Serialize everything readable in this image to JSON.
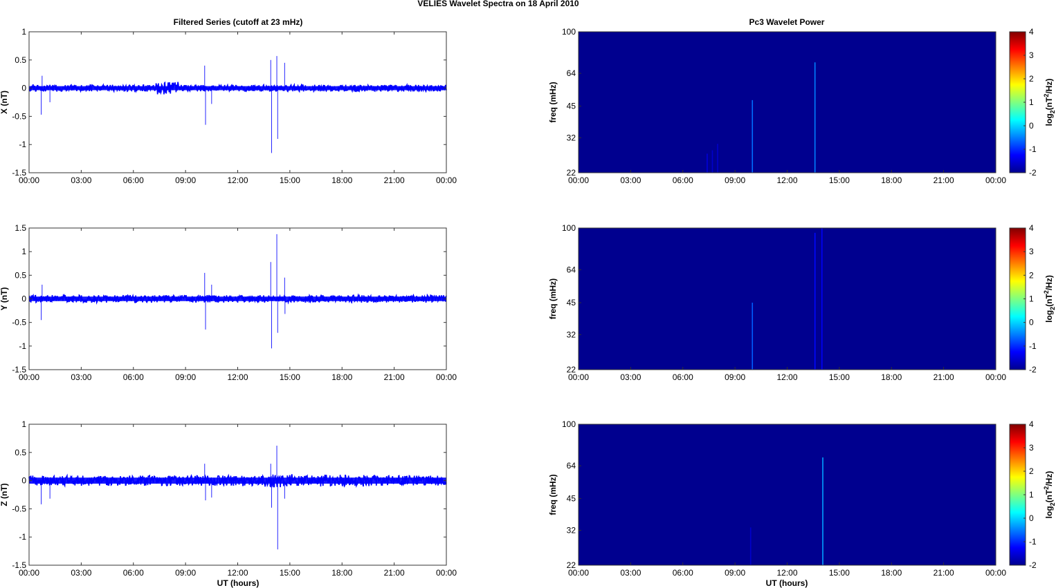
{
  "figure_title": "VELIES Wavelet Spectra on 18 April     2010",
  "left_title": "Filtered Series (cutoff at 23 mHz)",
  "right_title": "Pc3 Wavelet Power",
  "xlabel": "UT (hours)",
  "time_ticks": [
    "00:00",
    "03:00",
    "06:00",
    "09:00",
    "12:00",
    "15:00",
    "18:00",
    "21:00",
    "00:00"
  ],
  "freq_label": "freq (mHz)",
  "freq_ticks": [
    "100",
    "64",
    "45",
    "32",
    "22"
  ],
  "colorbar_ticks": [
    "4",
    "3",
    "2",
    "1",
    "0",
    "-1",
    "-2"
  ],
  "colorbar_label": "log2(nT2/Hz)",
  "colors": {
    "series": "#0000ff",
    "spectrogram_bg": "#00008f"
  },
  "chart_data": [
    {
      "type": "line",
      "ylabel": "X (nT)",
      "xlim": [
        0,
        24
      ],
      "ylim": [
        -1.5,
        1
      ],
      "yticks": [
        "1",
        "0.5",
        "0",
        "-0.5",
        "-1",
        "-1.5"
      ],
      "noise_amplitude": 0.06,
      "events": [
        [
          0.7,
          -0.47
        ],
        [
          0.75,
          0.22
        ],
        [
          1.2,
          -0.25
        ],
        [
          10.1,
          0.4
        ],
        [
          10.15,
          -0.65
        ],
        [
          10.5,
          -0.28
        ],
        [
          13.9,
          0.5
        ],
        [
          13.95,
          -1.15
        ],
        [
          14.25,
          0.57
        ],
        [
          14.3,
          -0.9
        ],
        [
          14.7,
          0.45
        ]
      ]
    },
    {
      "type": "line",
      "ylabel": "Y (nT)",
      "xlim": [
        0,
        24
      ],
      "ylim": [
        -1.5,
        1.5
      ],
      "yticks": [
        "1.5",
        "1",
        "0.5",
        "0",
        "-0.5",
        "-1",
        "-1.5"
      ],
      "noise_amplitude": 0.08,
      "events": [
        [
          0.7,
          -0.45
        ],
        [
          0.75,
          0.3
        ],
        [
          10.1,
          0.55
        ],
        [
          10.15,
          -0.65
        ],
        [
          10.5,
          0.3
        ],
        [
          13.9,
          0.78
        ],
        [
          13.95,
          -1.05
        ],
        [
          14.25,
          1.37
        ],
        [
          14.3,
          -0.72
        ],
        [
          14.7,
          0.45
        ],
        [
          14.72,
          -0.32
        ]
      ]
    },
    {
      "type": "line",
      "ylabel": "Z (nT)",
      "xlim": [
        0,
        24
      ],
      "ylim": [
        -1.5,
        1
      ],
      "yticks": [
        "1",
        "0.5",
        "0",
        "-0.5",
        "-1",
        "-1.5"
      ],
      "noise_amplitude": 0.09,
      "events": [
        [
          0.7,
          -0.42
        ],
        [
          1.2,
          -0.32
        ],
        [
          10.1,
          0.3
        ],
        [
          10.15,
          -0.35
        ],
        [
          10.5,
          -0.3
        ],
        [
          13.9,
          0.3
        ],
        [
          13.95,
          -0.48
        ],
        [
          14.25,
          0.62
        ],
        [
          14.3,
          -1.22
        ],
        [
          14.7,
          -0.32
        ]
      ]
    },
    {
      "type": "heatmap",
      "ylabel": "freq (mHz)",
      "xlim": [
        0,
        24
      ],
      "ylim": [
        22,
        100
      ],
      "clim": [
        -2,
        4
      ],
      "streaks": [
        [
          7.4,
          22,
          27,
          -1.5
        ],
        [
          7.7,
          22,
          28,
          -1.6
        ],
        [
          8.0,
          22,
          30,
          -1.6
        ],
        [
          10.0,
          22,
          48,
          -0.6
        ],
        [
          13.6,
          22,
          72,
          -0.5
        ]
      ]
    },
    {
      "type": "heatmap",
      "ylabel": "freq (mHz)",
      "xlim": [
        0,
        24
      ],
      "ylim": [
        22,
        100
      ],
      "clim": [
        -2,
        4
      ],
      "streaks": [
        [
          10.0,
          22,
          45,
          -0.7
        ],
        [
          13.6,
          22,
          95,
          -1.2
        ],
        [
          14.0,
          22,
          100,
          -1.3
        ]
      ]
    },
    {
      "type": "heatmap",
      "ylabel": "freq (mHz)",
      "xlim": [
        0,
        24
      ],
      "ylim": [
        22,
        100
      ],
      "clim": [
        -2,
        4
      ],
      "streaks": [
        [
          9.9,
          22,
          33,
          -1.6
        ],
        [
          14.05,
          22,
          70,
          -0.3
        ]
      ]
    }
  ]
}
